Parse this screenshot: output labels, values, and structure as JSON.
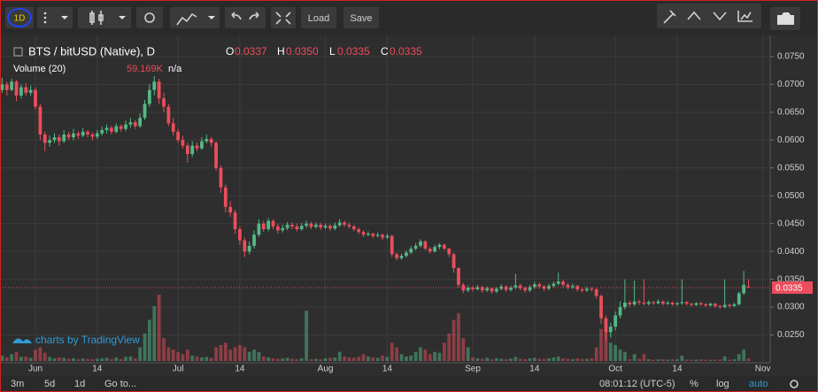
{
  "toolbar": {
    "interval": "1D",
    "load": "Load",
    "save": "Save"
  },
  "chart_data": {
    "type": "candlestick",
    "title": "BTS / bitUSD (Native), D",
    "ohlc_names": [
      "O",
      "H",
      "L",
      "C"
    ],
    "ohlc_labels": [
      "0.0337",
      "0.0350",
      "0.0335",
      "0.0335"
    ],
    "volume_title": "Volume (20)",
    "volume_last_label": "59.169K",
    "volume_na": "n/a",
    "watermark": "charts by TradingView",
    "up_color": "#53b987",
    "down_color": "#eb4d5c",
    "grid": true,
    "xlim": [
      -0.45,
      161.56
    ],
    "xticks": [
      {
        "value": 7,
        "label": "Jun"
      },
      {
        "value": 20,
        "label": "14"
      },
      {
        "value": 37,
        "label": "Jul"
      },
      {
        "value": 50,
        "label": "14"
      },
      {
        "value": 68,
        "label": "Aug"
      },
      {
        "value": 81,
        "label": "14"
      },
      {
        "value": 99,
        "label": "Sep"
      },
      {
        "value": 112,
        "label": "14"
      },
      {
        "value": 129,
        "label": "Oct"
      },
      {
        "value": 142,
        "label": "14"
      },
      {
        "value": 160,
        "label": "Nov"
      }
    ],
    "ylim": [
      0.02,
      0.0788
    ],
    "yticks": [
      {
        "value": 0.075,
        "label": "0.0750"
      },
      {
        "value": 0.07,
        "label": "0.0700"
      },
      {
        "value": 0.065,
        "label": "0.0650"
      },
      {
        "value": 0.06,
        "label": "0.0600"
      },
      {
        "value": 0.055,
        "label": "0.0550"
      },
      {
        "value": 0.05,
        "label": "0.0500"
      },
      {
        "value": 0.045,
        "label": "0.0450"
      },
      {
        "value": 0.04,
        "label": "0.0400"
      },
      {
        "value": 0.035,
        "label": "0.0350"
      },
      {
        "value": 0.03,
        "label": "0.0300"
      },
      {
        "value": 0.025,
        "label": "0.0250"
      }
    ],
    "candles": [
      [
        0.069,
        0.0712,
        0.0685,
        0.07
      ],
      [
        0.07,
        0.0705,
        0.068,
        0.069
      ],
      [
        0.069,
        0.071,
        0.0688,
        0.0705
      ],
      [
        0.0705,
        0.0708,
        0.067,
        0.068
      ],
      [
        0.068,
        0.07,
        0.0675,
        0.0695
      ],
      [
        0.0695,
        0.0702,
        0.068,
        0.0685
      ],
      [
        0.0685,
        0.0698,
        0.068,
        0.069
      ],
      [
        0.069,
        0.0695,
        0.0655,
        0.066
      ],
      [
        0.066,
        0.0665,
        0.06,
        0.061
      ],
      [
        0.061,
        0.0615,
        0.058,
        0.0595
      ],
      [
        0.0595,
        0.0608,
        0.0588,
        0.06
      ],
      [
        0.06,
        0.0612,
        0.0595,
        0.0605
      ],
      [
        0.0605,
        0.061,
        0.059,
        0.0598
      ],
      [
        0.0598,
        0.0618,
        0.0595,
        0.061
      ],
      [
        0.061,
        0.0615,
        0.06,
        0.0605
      ],
      [
        0.0605,
        0.062,
        0.06,
        0.0612
      ],
      [
        0.0612,
        0.0616,
        0.0602,
        0.0608
      ],
      [
        0.0608,
        0.0622,
        0.0605,
        0.0615
      ],
      [
        0.0615,
        0.0618,
        0.0605,
        0.061
      ],
      [
        0.061,
        0.0614,
        0.06,
        0.0606
      ],
      [
        0.0606,
        0.0618,
        0.0602,
        0.0612
      ],
      [
        0.0612,
        0.0624,
        0.0608,
        0.0618
      ],
      [
        0.0618,
        0.0628,
        0.0612,
        0.0622
      ],
      [
        0.0622,
        0.0626,
        0.061,
        0.0615
      ],
      [
        0.0615,
        0.063,
        0.0612,
        0.0625
      ],
      [
        0.0625,
        0.0628,
        0.0615,
        0.062
      ],
      [
        0.062,
        0.0635,
        0.0616,
        0.0628
      ],
      [
        0.0628,
        0.064,
        0.0622,
        0.0632
      ],
      [
        0.0632,
        0.0636,
        0.062,
        0.0625
      ],
      [
        0.0625,
        0.0648,
        0.0622,
        0.064
      ],
      [
        0.064,
        0.0672,
        0.0636,
        0.0665
      ],
      [
        0.0665,
        0.07,
        0.066,
        0.069
      ],
      [
        0.069,
        0.0715,
        0.068,
        0.0705
      ],
      [
        0.0705,
        0.071,
        0.0665,
        0.0675
      ],
      [
        0.0675,
        0.0685,
        0.065,
        0.066
      ],
      [
        0.066,
        0.0665,
        0.0625,
        0.063
      ],
      [
        0.063,
        0.064,
        0.0608,
        0.0615
      ],
      [
        0.0615,
        0.062,
        0.0595,
        0.06
      ],
      [
        0.06,
        0.0608,
        0.0585,
        0.059
      ],
      [
        0.059,
        0.0595,
        0.056,
        0.0575
      ],
      [
        0.0575,
        0.0598,
        0.057,
        0.059
      ],
      [
        0.059,
        0.0596,
        0.058,
        0.0585
      ],
      [
        0.0585,
        0.0605,
        0.0582,
        0.0598
      ],
      [
        0.0598,
        0.061,
        0.0594,
        0.0602
      ],
      [
        0.0602,
        0.0606,
        0.0588,
        0.0595
      ],
      [
        0.0595,
        0.0598,
        0.0545,
        0.055
      ],
      [
        0.055,
        0.0555,
        0.0505,
        0.0515
      ],
      [
        0.0515,
        0.052,
        0.047,
        0.048
      ],
      [
        0.048,
        0.049,
        0.0462,
        0.047
      ],
      [
        0.047,
        0.0475,
        0.0432,
        0.044
      ],
      [
        0.044,
        0.0445,
        0.0412,
        0.042
      ],
      [
        0.042,
        0.0425,
        0.039,
        0.04
      ],
      [
        0.04,
        0.0418,
        0.0395,
        0.041
      ],
      [
        0.041,
        0.0438,
        0.0405,
        0.043
      ],
      [
        0.043,
        0.0458,
        0.0426,
        0.045
      ],
      [
        0.045,
        0.0455,
        0.0435,
        0.044
      ],
      [
        0.044,
        0.046,
        0.0436,
        0.0455
      ],
      [
        0.0455,
        0.0458,
        0.044,
        0.0445
      ],
      [
        0.0445,
        0.045,
        0.0432,
        0.0438
      ],
      [
        0.0438,
        0.0448,
        0.0434,
        0.0442
      ],
      [
        0.0442,
        0.0453,
        0.0438,
        0.0448
      ],
      [
        0.0448,
        0.0452,
        0.044,
        0.0445
      ],
      [
        0.0445,
        0.045,
        0.0436,
        0.044
      ],
      [
        0.044,
        0.0451,
        0.0437,
        0.0446
      ],
      [
        0.0446,
        0.0455,
        0.0442,
        0.045
      ],
      [
        0.045,
        0.0453,
        0.044,
        0.0444
      ],
      [
        0.0444,
        0.0452,
        0.0441,
        0.0448
      ],
      [
        0.0448,
        0.0451,
        0.0439,
        0.0443
      ],
      [
        0.0443,
        0.045,
        0.044,
        0.0446
      ],
      [
        0.0446,
        0.0449,
        0.0437,
        0.0441
      ],
      [
        0.0441,
        0.0452,
        0.0438,
        0.0447
      ],
      [
        0.0447,
        0.0458,
        0.0444,
        0.0452
      ],
      [
        0.0452,
        0.0455,
        0.0444,
        0.0448
      ],
      [
        0.0448,
        0.0452,
        0.0441,
        0.0445
      ],
      [
        0.0445,
        0.0448,
        0.0436,
        0.044
      ],
      [
        0.044,
        0.0443,
        0.0431,
        0.0435
      ],
      [
        0.0435,
        0.0438,
        0.0426,
        0.043
      ],
      [
        0.043,
        0.0436,
        0.0427,
        0.0432
      ],
      [
        0.0432,
        0.0434,
        0.0424,
        0.0428
      ],
      [
        0.0428,
        0.0434,
        0.0425,
        0.043
      ],
      [
        0.043,
        0.0432,
        0.042,
        0.0425
      ],
      [
        0.0425,
        0.0432,
        0.0422,
        0.0428
      ],
      [
        0.0428,
        0.043,
        0.039,
        0.0395
      ],
      [
        0.0395,
        0.0398,
        0.0384,
        0.0388
      ],
      [
        0.0388,
        0.0396,
        0.0385,
        0.0392
      ],
      [
        0.0392,
        0.0402,
        0.0389,
        0.0398
      ],
      [
        0.0398,
        0.041,
        0.0395,
        0.0405
      ],
      [
        0.0405,
        0.0415,
        0.0402,
        0.041
      ],
      [
        0.041,
        0.0422,
        0.0407,
        0.0418
      ],
      [
        0.0418,
        0.042,
        0.0402,
        0.0405
      ],
      [
        0.0405,
        0.0408,
        0.0396,
        0.04
      ],
      [
        0.04,
        0.0412,
        0.0398,
        0.0408
      ],
      [
        0.0408,
        0.0415,
        0.0404,
        0.0412
      ],
      [
        0.0412,
        0.0414,
        0.0402,
        0.0405
      ],
      [
        0.0405,
        0.0407,
        0.039,
        0.0395
      ],
      [
        0.0395,
        0.0398,
        0.0362,
        0.037
      ],
      [
        0.037,
        0.0372,
        0.0335,
        0.034
      ],
      [
        0.034,
        0.0344,
        0.0325,
        0.033
      ],
      [
        0.033,
        0.0339,
        0.0327,
        0.0335
      ],
      [
        0.0335,
        0.0338,
        0.0328,
        0.0332
      ],
      [
        0.0332,
        0.034,
        0.033,
        0.0336
      ],
      [
        0.0336,
        0.0338,
        0.0326,
        0.033
      ],
      [
        0.033,
        0.0337,
        0.0327,
        0.0334
      ],
      [
        0.0334,
        0.0336,
        0.0324,
        0.0328
      ],
      [
        0.0328,
        0.0336,
        0.0325,
        0.0333
      ],
      [
        0.0333,
        0.0341,
        0.033,
        0.0337
      ],
      [
        0.0337,
        0.0339,
        0.0327,
        0.0331
      ],
      [
        0.0331,
        0.0338,
        0.0328,
        0.0335
      ],
      [
        0.0335,
        0.036,
        0.0332,
        0.0339
      ],
      [
        0.0339,
        0.0342,
        0.033,
        0.0334
      ],
      [
        0.0334,
        0.0337,
        0.0326,
        0.033
      ],
      [
        0.033,
        0.034,
        0.0327,
        0.0336
      ],
      [
        0.0336,
        0.0345,
        0.0333,
        0.0341
      ],
      [
        0.0341,
        0.0344,
        0.0333,
        0.0337
      ],
      [
        0.0337,
        0.034,
        0.0329,
        0.0333
      ],
      [
        0.0333,
        0.0342,
        0.033,
        0.0338
      ],
      [
        0.0338,
        0.0346,
        0.0335,
        0.0342
      ],
      [
        0.0342,
        0.0362,
        0.0339,
        0.0346
      ],
      [
        0.0346,
        0.0349,
        0.0336,
        0.034
      ],
      [
        0.034,
        0.0343,
        0.0332,
        0.0336
      ],
      [
        0.0336,
        0.0342,
        0.0333,
        0.0338
      ],
      [
        0.0338,
        0.034,
        0.0328,
        0.0332
      ],
      [
        0.0332,
        0.0335,
        0.0326,
        0.033
      ],
      [
        0.033,
        0.0337,
        0.0327,
        0.0333
      ],
      [
        0.0333,
        0.0336,
        0.0328,
        0.0332
      ],
      [
        0.0332,
        0.0334,
        0.0315,
        0.032
      ],
      [
        0.032,
        0.0323,
        0.027,
        0.028
      ],
      [
        0.028,
        0.0285,
        0.024,
        0.0255
      ],
      [
        0.0255,
        0.0272,
        0.0245,
        0.0265
      ],
      [
        0.0265,
        0.0292,
        0.0258,
        0.0285
      ],
      [
        0.0285,
        0.031,
        0.028,
        0.03
      ],
      [
        0.03,
        0.035,
        0.0296,
        0.0308
      ],
      [
        0.0308,
        0.0312,
        0.03,
        0.0305
      ],
      [
        0.0305,
        0.0348,
        0.0302,
        0.031
      ],
      [
        0.031,
        0.0313,
        0.0304,
        0.0308
      ],
      [
        0.0308,
        0.035,
        0.0303,
        0.0306
      ],
      [
        0.0306,
        0.0312,
        0.0303,
        0.0309
      ],
      [
        0.0309,
        0.0311,
        0.0304,
        0.0307
      ],
      [
        0.0307,
        0.0314,
        0.0305,
        0.031
      ],
      [
        0.031,
        0.0312,
        0.0303,
        0.0306
      ],
      [
        0.0306,
        0.0311,
        0.0304,
        0.0308
      ],
      [
        0.0308,
        0.031,
        0.0302,
        0.0305
      ],
      [
        0.0305,
        0.0309,
        0.0302,
        0.0307
      ],
      [
        0.0307,
        0.035,
        0.0304,
        0.0309
      ],
      [
        0.0309,
        0.0311,
        0.0303,
        0.0306
      ],
      [
        0.0306,
        0.0308,
        0.0301,
        0.0304
      ],
      [
        0.0304,
        0.0309,
        0.0302,
        0.0307
      ],
      [
        0.0307,
        0.0309,
        0.0302,
        0.0305
      ],
      [
        0.0305,
        0.0307,
        0.03,
        0.0303
      ],
      [
        0.0303,
        0.0308,
        0.0301,
        0.0306
      ],
      [
        0.0306,
        0.0308,
        0.0299,
        0.0302
      ],
      [
        0.0302,
        0.0304,
        0.0297,
        0.03
      ],
      [
        0.03,
        0.035,
        0.0298,
        0.0304
      ],
      [
        0.0304,
        0.0306,
        0.0299,
        0.0302
      ],
      [
        0.0302,
        0.0308,
        0.03,
        0.0305
      ],
      [
        0.0305,
        0.0328,
        0.0303,
        0.0325
      ],
      [
        0.0325,
        0.0365,
        0.0322,
        0.034
      ],
      [
        0.0337,
        0.035,
        0.0335,
        0.0335
      ]
    ],
    "volume": [
      120,
      80,
      150,
      200,
      90,
      100,
      70,
      250,
      300,
      180,
      90,
      60,
      80,
      70,
      50,
      60,
      40,
      55,
      45,
      40,
      50,
      60,
      70,
      45,
      80,
      40,
      90,
      100,
      60,
      300,
      600,
      900,
      1200,
      1450,
      500,
      300,
      250,
      200,
      150,
      250,
      120,
      100,
      80,
      90,
      70,
      300,
      350,
      400,
      250,
      300,
      350,
      300,
      200,
      250,
      200,
      100,
      80,
      60,
      50,
      60,
      70,
      50,
      40,
      60,
      1100,
      40,
      50,
      40,
      60,
      70,
      80,
      200,
      100,
      80,
      70,
      90,
      150,
      100,
      80,
      70,
      120,
      90,
      400,
      300,
      150,
      100,
      120,
      200,
      300,
      250,
      150,
      200,
      180,
      400,
      600,
      900,
      1050,
      500,
      300,
      80,
      60,
      50,
      70,
      40,
      60,
      50,
      40,
      55,
      90,
      50,
      40,
      60,
      70,
      50,
      45,
      60,
      80,
      100,
      60,
      50,
      40,
      55,
      45,
      50,
      60,
      300,
      700,
      850,
      400,
      350,
      250,
      200,
      40,
      150,
      50,
      150,
      40,
      30,
      35,
      40,
      30,
      35,
      40,
      120,
      30,
      25,
      30,
      35,
      30,
      25,
      30,
      35,
      100,
      30,
      40,
      150,
      250,
      59.169
    ]
  },
  "footer": {
    "ranges": [
      "3m",
      "5d",
      "1d"
    ],
    "goto": "Go to...",
    "time": "08:01:12 (UTC-5)",
    "percent": "%",
    "log": "log",
    "auto": "auto"
  }
}
